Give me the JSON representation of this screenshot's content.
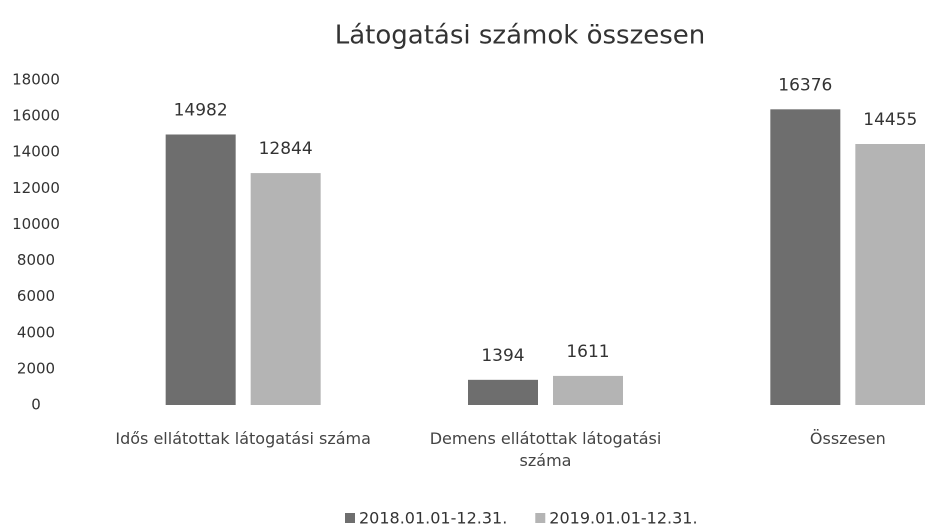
{
  "chart_data": {
    "type": "bar",
    "title": "Látogatási számok összesen",
    "categories": [
      "Idős ellátottak látogatási száma",
      "Demens ellátottak látogatási száma",
      "Összesen"
    ],
    "series": [
      {
        "name": "2018.01.01-12.31.",
        "color": "#6e6e6e",
        "values": [
          14982,
          1394,
          16376
        ]
      },
      {
        "name": "2019.01.01-12.31.",
        "color": "#b4b4b4",
        "values": [
          12844,
          1611,
          14455
        ]
      }
    ],
    "ylim": [
      0,
      18000
    ],
    "yticks": [
      0,
      2000,
      4000,
      6000,
      8000,
      10000,
      12000,
      14000,
      16000,
      18000
    ],
    "grid": false,
    "legend": "bottom"
  }
}
